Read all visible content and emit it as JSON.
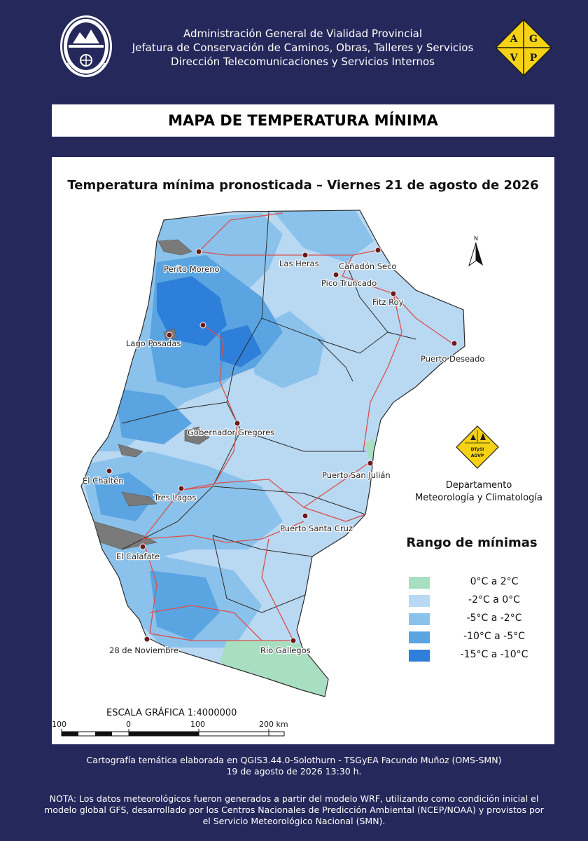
{
  "header": {
    "lines": [
      "Administración General de Vialidad Provincial",
      "Jefatura de Conservación de Caminos, Obras, Talleres y Servicios",
      "Dirección Telecomunicaciones y Servicios Internos"
    ],
    "logo_left": "provincial-seal-icon",
    "logo_right": {
      "letters": [
        "A",
        "G",
        "V",
        "P"
      ],
      "color": "#f5d215"
    }
  },
  "title": "MAPA DE TEMPERATURA MÍNIMA",
  "map": {
    "subtitle": "Temperatura mínima pronosticada – Viernes 21 de agosto de 2026",
    "north_label": "N",
    "cities": [
      "Perito Moreno",
      "Las Heras",
      "Cañadón Seco",
      "Pico Truncado",
      "Fitz Roy",
      "Lago Posadas",
      "Puerto Deseado",
      "Gobernador Gregores",
      "El Chaltén",
      "Puerto San Julián",
      "Tres Lagos",
      "Puerto Santa Cruz",
      "El Calafate",
      "28 de Noviembre",
      "Río Gallegos"
    ],
    "department": {
      "logo_text": [
        "DTySI",
        "AGVP"
      ],
      "lines": [
        "Departamento",
        "Meteorología y Climatología"
      ]
    },
    "legend": {
      "title": "Rango de mínimas",
      "items": [
        {
          "label": "0°C a 2°C",
          "color": "#a8dfc1"
        },
        {
          "label": "-2°C a 0°C",
          "color": "#b9d8f2"
        },
        {
          "label": "-5°C a -2°C",
          "color": "#8bc2eb"
        },
        {
          "label": "-10°C a -5°C",
          "color": "#5aa4e2"
        },
        {
          "label": "-15°C a -10°C",
          "color": "#2d7fd9"
        }
      ]
    },
    "scale": {
      "title": "ESCALA GRÁFICA 1:4000000",
      "labels": [
        "100",
        "0",
        "100",
        "200 km"
      ]
    }
  },
  "footer": {
    "credit": "Cartografía temática elaborada en QGIS3.44.0-Solothurn - TSGyEA Facundo Muñoz (OMS-SMN)",
    "date": "19 de agosto de 2026 13:30 h."
  },
  "note": "NOTA: Los datos meteorológicos fueron generados a partir del modelo WRF, utilizando como condición inicial el modelo global GFS, desarrollado por los Centros Nacionales de Predicción Ambiental (NCEP/NOAA) y provistos por el Servicio Meteorológico Nacional (SMN)."
}
